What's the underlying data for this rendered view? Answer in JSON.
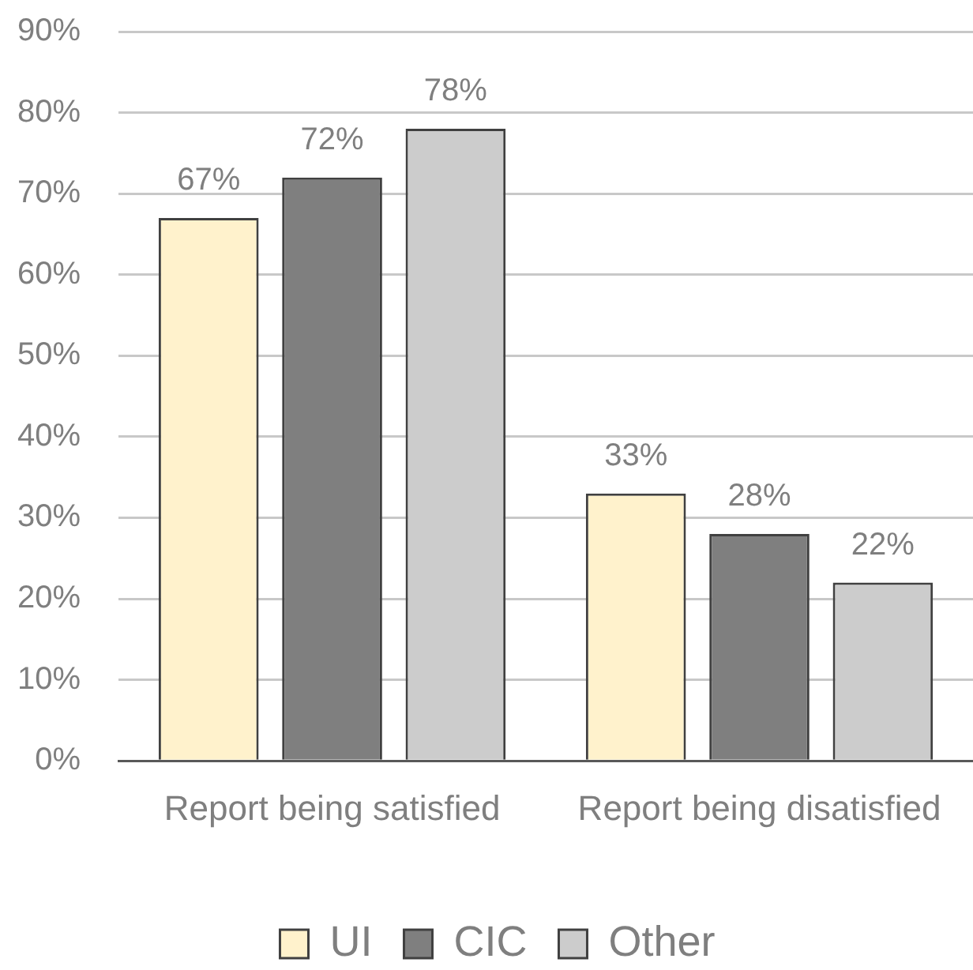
{
  "chart_data": {
    "type": "bar",
    "categories": [
      "Report being satisfied",
      "Report being disatisfied"
    ],
    "series": [
      {
        "name": "UI",
        "color": "#fff2cc",
        "values": [
          67,
          33
        ],
        "value_labels": [
          "67%",
          "33%"
        ]
      },
      {
        "name": "CIC",
        "color": "#7f7f7f",
        "values": [
          72,
          28
        ],
        "value_labels": [
          "72%",
          "28%"
        ]
      },
      {
        "name": "Other",
        "color": "#cccccc",
        "values": [
          78,
          22
        ],
        "value_labels": [
          "78%",
          "22%"
        ]
      }
    ],
    "ylim": [
      0,
      90
    ],
    "yticks": [
      {
        "value": 0,
        "label": "0%"
      },
      {
        "value": 10,
        "label": "10%"
      },
      {
        "value": 20,
        "label": "20%"
      },
      {
        "value": 30,
        "label": "30%"
      },
      {
        "value": 40,
        "label": "40%"
      },
      {
        "value": 50,
        "label": "50%"
      },
      {
        "value": 60,
        "label": "60%"
      },
      {
        "value": 70,
        "label": "70%"
      },
      {
        "value": 80,
        "label": "80%"
      },
      {
        "value": 90,
        "label": "90%"
      }
    ],
    "grid": "y",
    "legend": "bottom"
  }
}
